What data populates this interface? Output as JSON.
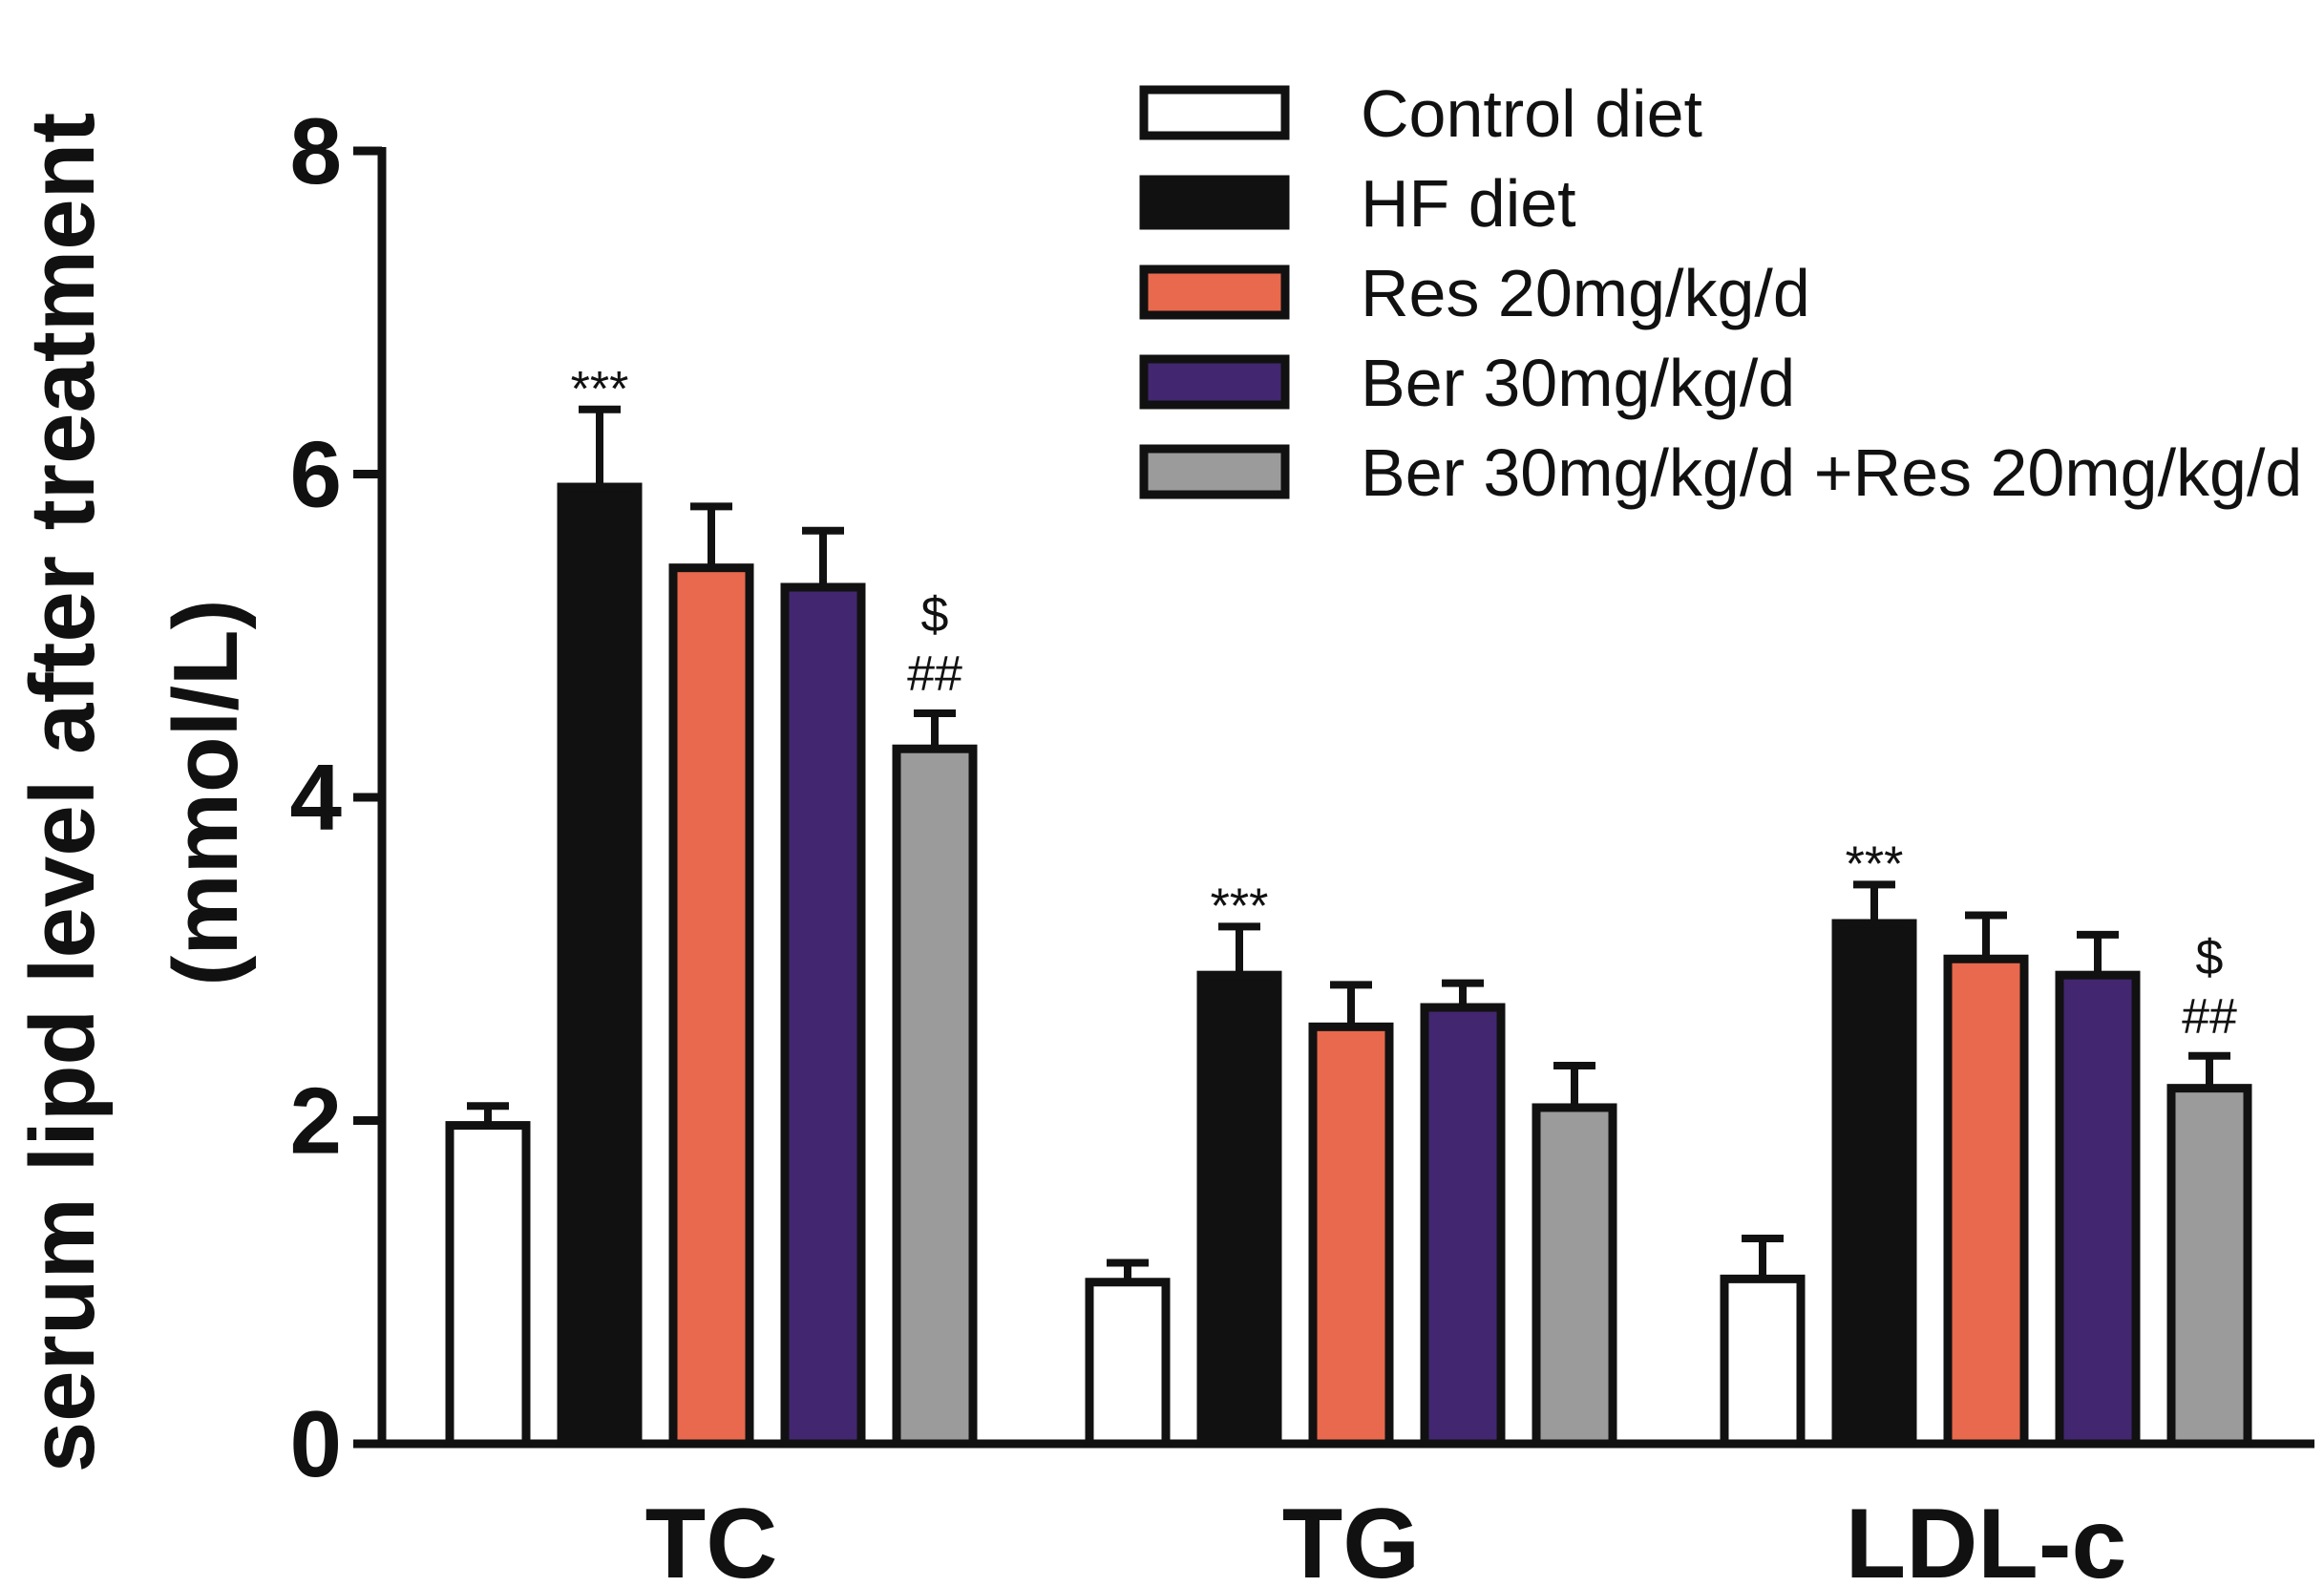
{
  "chart_data": {
    "type": "bar",
    "ylabel": "serum lipd level after treatment (mmol/L)",
    "ylabel_lines": [
      "serum lipd level after treatment",
      "(mmol/L)"
    ],
    "ylim": [
      0,
      8
    ],
    "yticks": [
      0,
      2,
      4,
      6,
      8
    ],
    "categories": [
      "TC",
      "TG",
      "LDL-c"
    ],
    "series": [
      {
        "name": "Control diet",
        "color": "#ffffff",
        "values": [
          1.97,
          1.0,
          1.02
        ],
        "errors": [
          0.12,
          0.12,
          0.25
        ]
      },
      {
        "name": "HF diet",
        "color": "#111111",
        "values": [
          5.92,
          2.9,
          3.22
        ],
        "errors": [
          0.48,
          0.3,
          0.24
        ]
      },
      {
        "name": "Res 20mg/kg/d",
        "color": "#e8694d",
        "values": [
          5.42,
          2.58,
          3.0
        ],
        "errors": [
          0.38,
          0.26,
          0.27
        ]
      },
      {
        "name": "Ber 30mg/kg/d",
        "color": "#42266f",
        "values": [
          5.3,
          2.7,
          2.9
        ],
        "errors": [
          0.35,
          0.15,
          0.25
        ]
      },
      {
        "name": "Ber 30mg/kg/d +Res 20mg/kg/d",
        "color": "#9b9b9b",
        "values": [
          4.3,
          2.08,
          2.2
        ],
        "errors": [
          0.22,
          0.26,
          0.2
        ]
      }
    ],
    "annotations": [
      {
        "category": 0,
        "series": 1,
        "lines": [
          "***"
        ]
      },
      {
        "category": 1,
        "series": 1,
        "lines": [
          "***"
        ]
      },
      {
        "category": 2,
        "series": 1,
        "lines": [
          "***"
        ]
      },
      {
        "category": 0,
        "series": 4,
        "lines": [
          "$",
          "##"
        ]
      },
      {
        "category": 2,
        "series": 4,
        "lines": [
          "$",
          "##"
        ]
      }
    ],
    "legend_position": "top-right"
  }
}
